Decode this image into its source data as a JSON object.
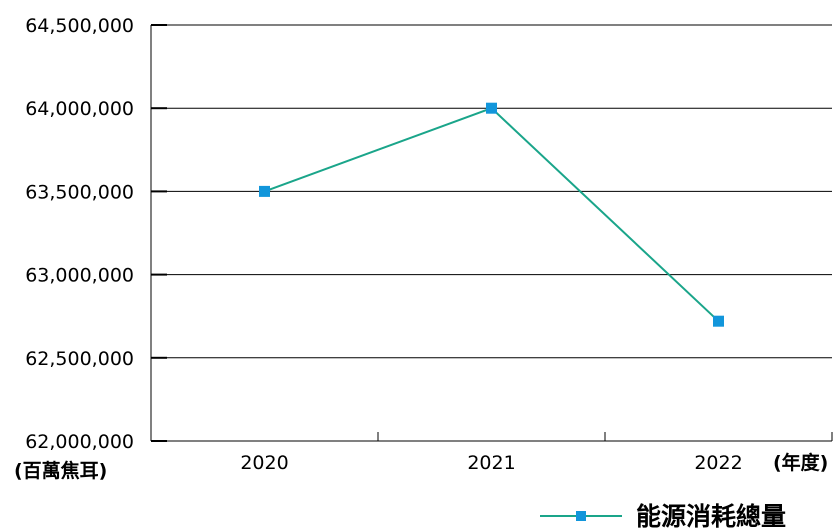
{
  "chart_data": {
    "type": "line",
    "categories": [
      "2020",
      "2021",
      "2022"
    ],
    "series": [
      {
        "name": "能源消耗總量",
        "values": [
          63500000,
          64000000,
          62720000
        ],
        "color": "#1aa58a",
        "marker_color": "#1296db"
      }
    ],
    "ylim": [
      62000000,
      64500000
    ],
    "yticks": [
      62000000,
      62500000,
      63000000,
      63500000,
      64000000,
      64500000
    ],
    "ytick_labels": [
      "62,000,000",
      "62,500,000",
      "63,000,000",
      "63,500,000",
      "64,000,000",
      "64,500,000"
    ],
    "ylabel": "(百萬焦耳)",
    "xlabel": "(年度)",
    "grid": true,
    "legend_position": "bottom-right"
  }
}
